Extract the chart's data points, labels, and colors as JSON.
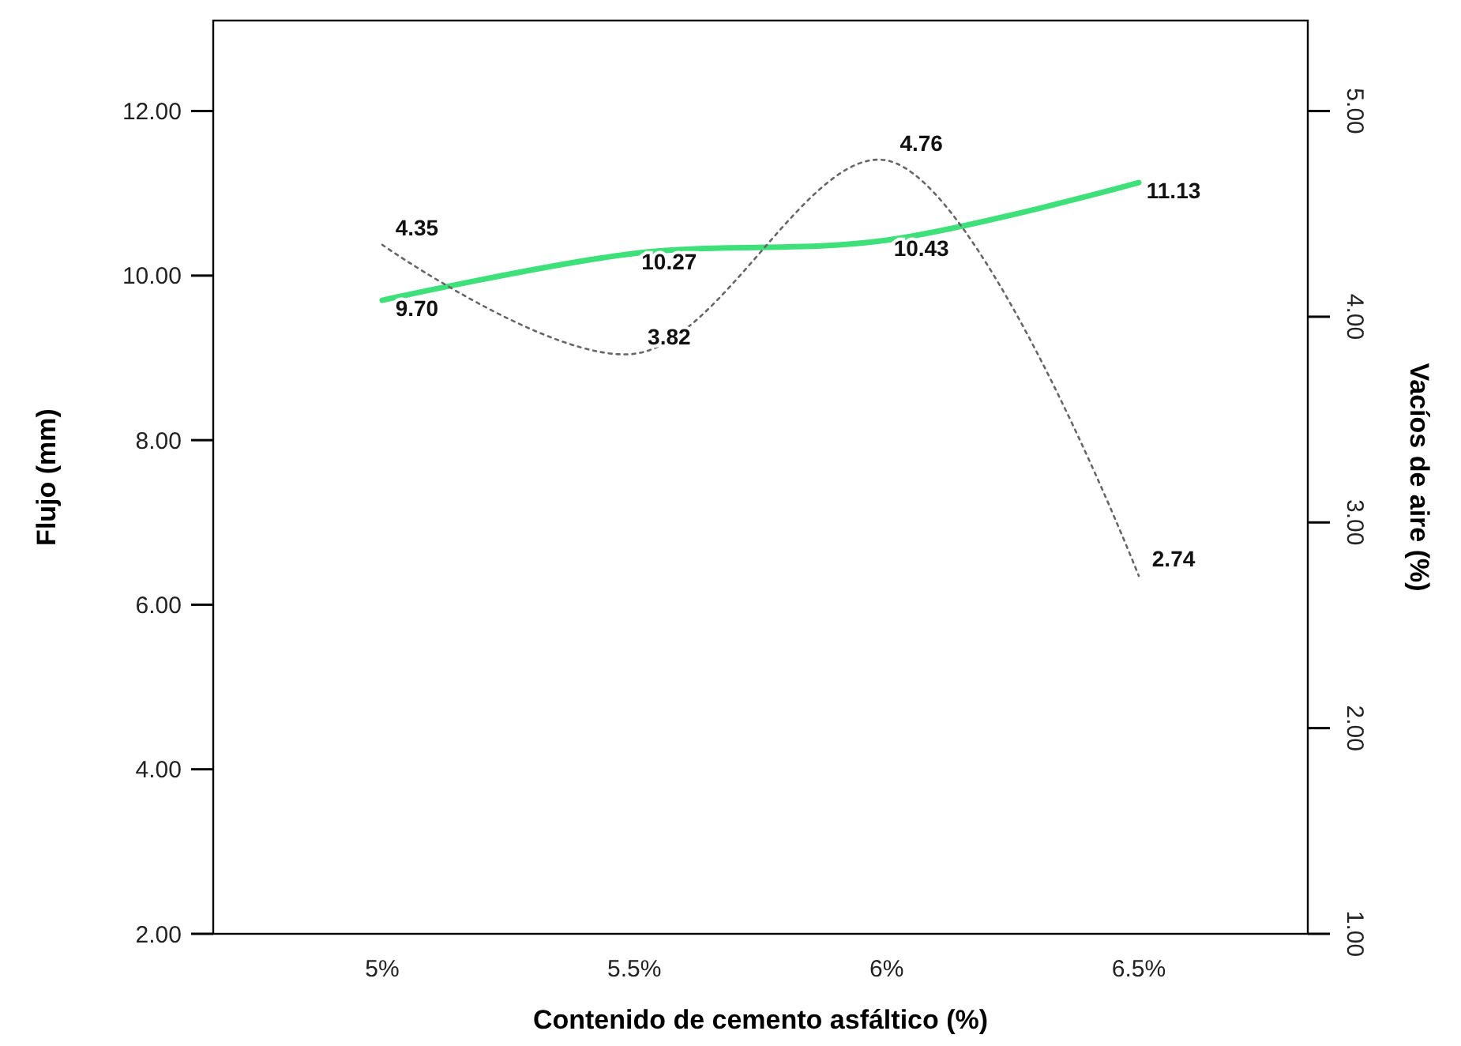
{
  "chart_data": {
    "type": "line",
    "xlabel": "Contenido de cemento asfáltico (%)",
    "ylabel": "Flujo (mm)",
    "y2label": "Vacíos de aire (%)",
    "categories": [
      "5%",
      "5.5%",
      "6%",
      "6.5%"
    ],
    "series": [
      {
        "color": "#3ee07a",
        "values": [
          9.7,
          10.27,
          10.43,
          11.13
        ],
        "value_labels": [
          "9.70",
          "10.27",
          "10.43",
          "11.13"
        ],
        "line_style": "solid"
      },
      {
        "color": "#666666",
        "values": [
          4.35,
          3.82,
          4.76,
          2.74
        ],
        "value_labels": [
          "4.35",
          "3.82",
          "4.76",
          "2.74"
        ],
        "axis": "y2",
        "line_style": "dotted"
      }
    ],
    "ylim": [
      2,
      13.1
    ],
    "yticks": [
      {
        "value": 2,
        "label": "2.00"
      },
      {
        "value": 4,
        "label": "4.00"
      },
      {
        "value": 6,
        "label": "6.00"
      },
      {
        "value": 8,
        "label": "8.00"
      },
      {
        "value": 10,
        "label": "10.00"
      },
      {
        "value": 12,
        "label": "12.00"
      }
    ],
    "y2lim": [
      1,
      5.44
    ],
    "y2ticks": [
      {
        "value": 1,
        "label": "1.00"
      },
      {
        "value": 2,
        "label": "2.00"
      },
      {
        "value": 3,
        "label": "3.00"
      },
      {
        "value": 4,
        "label": "4.00"
      },
      {
        "value": 5,
        "label": "5.00"
      }
    ],
    "grid": false,
    "marker": "none"
  }
}
